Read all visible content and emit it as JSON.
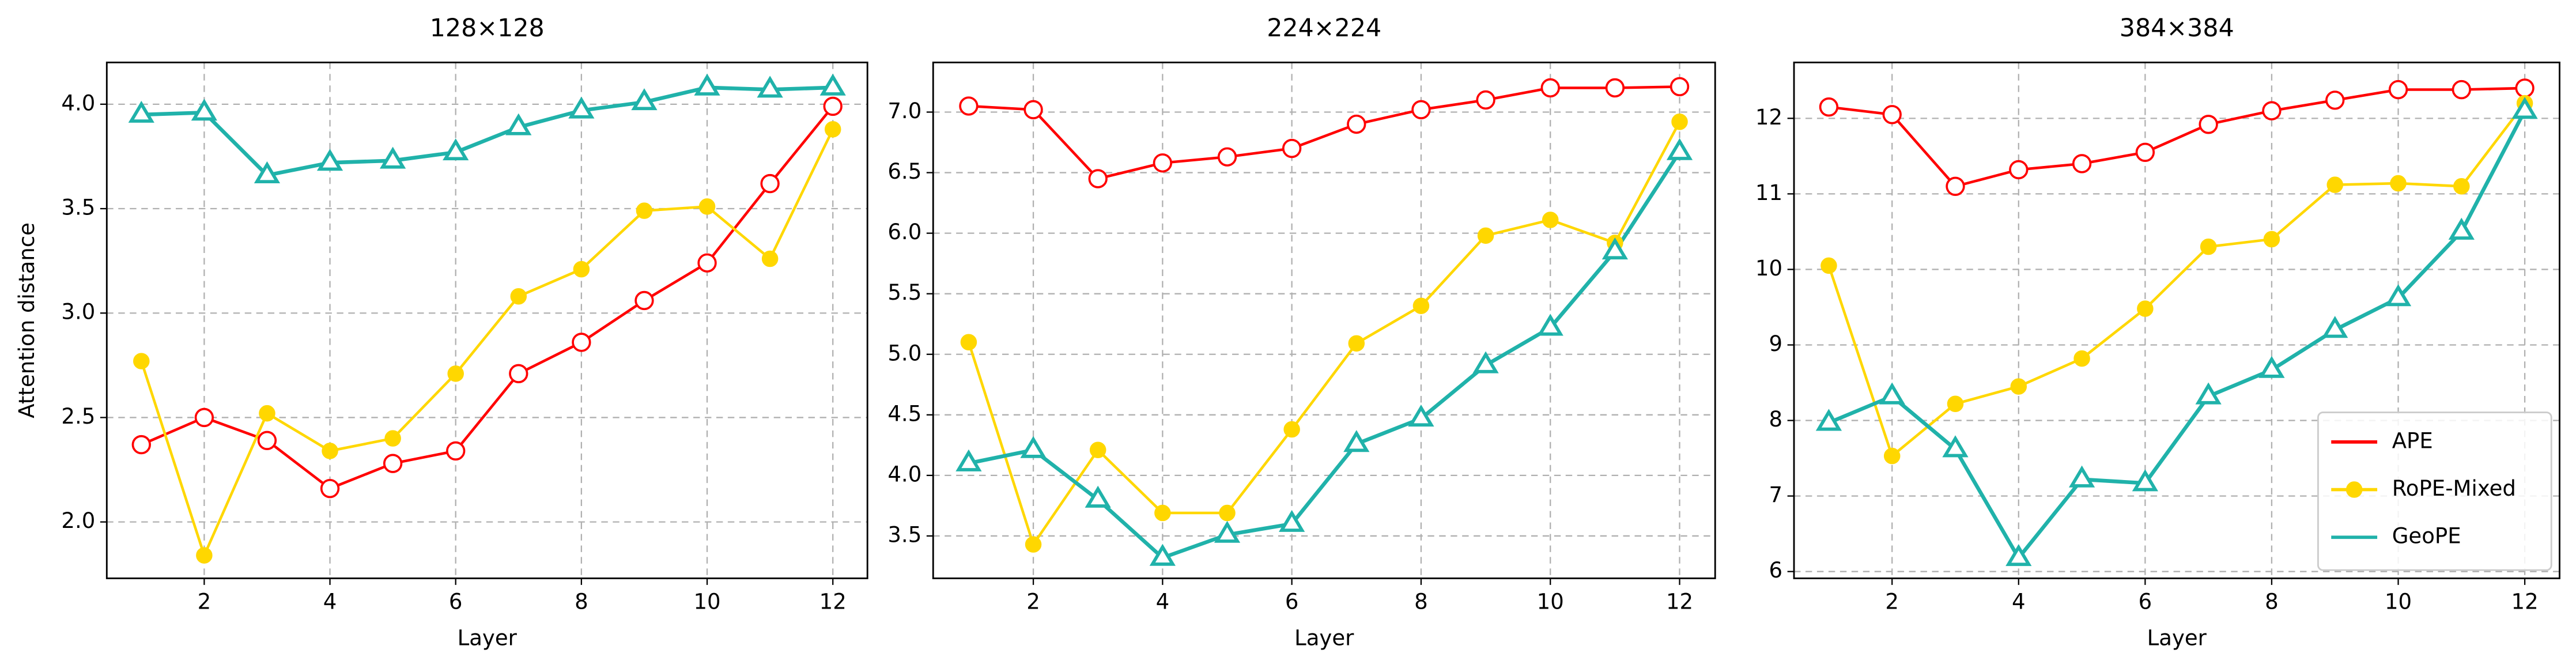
{
  "chart_data": [
    {
      "type": "line",
      "title": "128×128",
      "xlabel": "Layer",
      "ylabel": "Attention distance",
      "x": [
        1,
        2,
        3,
        4,
        5,
        6,
        7,
        8,
        9,
        10,
        11,
        12
      ],
      "xlim": [
        0.45,
        12.55
      ],
      "ylim": [
        1.73,
        4.2
      ],
      "grid": true,
      "xticks": [
        2,
        4,
        6,
        8,
        10,
        12
      ],
      "yticks": [
        {
          "value": 2,
          "label": "2.0"
        },
        2.5,
        {
          "value": 3,
          "label": "3.0"
        },
        3.5,
        {
          "value": 4,
          "label": "4.0"
        }
      ],
      "series": [
        {
          "name": "APE",
          "color": "#ff0000",
          "marker": "open-circle",
          "values": [
            2.37,
            2.5,
            2.39,
            2.16,
            2.28,
            2.34,
            2.71,
            2.86,
            3.06,
            3.24,
            3.62,
            3.99
          ]
        },
        {
          "name": "RoPE-Mixed",
          "color": "#ffd700",
          "marker": "filled-circle",
          "values": [
            2.77,
            1.84,
            2.52,
            2.34,
            2.4,
            2.71,
            3.08,
            3.21,
            3.49,
            3.51,
            3.26,
            3.88
          ]
        },
        {
          "name": "GeoPE",
          "color": "#20b2aa",
          "marker": "open-triangle",
          "values": [
            3.95,
            3.96,
            3.66,
            3.72,
            3.73,
            3.77,
            3.89,
            3.97,
            4.01,
            4.08,
            4.07,
            4.08
          ]
        }
      ]
    },
    {
      "type": "line",
      "title": "224×224",
      "xlabel": "Layer",
      "x": [
        1,
        2,
        3,
        4,
        5,
        6,
        7,
        8,
        9,
        10,
        11,
        12
      ],
      "xlim": [
        0.45,
        12.55
      ],
      "ylim": [
        3.15,
        7.41
      ],
      "grid": true,
      "xticks": [
        2,
        4,
        6,
        8,
        10,
        12
      ],
      "yticks": [
        3.5,
        {
          "value": 4,
          "label": "4.0"
        },
        4.5,
        {
          "value": 5,
          "label": "5.0"
        },
        5.5,
        {
          "value": 6,
          "label": "6.0"
        },
        6.5,
        {
          "value": 7,
          "label": "7.0"
        }
      ],
      "series": [
        {
          "name": "APE",
          "color": "#ff0000",
          "marker": "open-circle",
          "values": [
            7.05,
            7.02,
            6.45,
            6.58,
            6.63,
            6.7,
            6.9,
            7.02,
            7.1,
            7.2,
            7.2,
            7.21
          ]
        },
        {
          "name": "RoPE-Mixed",
          "color": "#ffd700",
          "marker": "filled-circle",
          "values": [
            5.1,
            3.43,
            4.21,
            3.69,
            3.69,
            4.38,
            5.09,
            5.4,
            5.98,
            6.11,
            5.92,
            6.92
          ]
        },
        {
          "name": "GeoPE",
          "color": "#20b2aa",
          "marker": "open-triangle",
          "values": [
            4.1,
            4.21,
            3.8,
            3.32,
            3.51,
            3.6,
            4.26,
            4.47,
            4.91,
            5.22,
            5.85,
            6.67
          ]
        }
      ]
    },
    {
      "type": "line",
      "title": "384×384",
      "xlabel": "Layer",
      "x": [
        1,
        2,
        3,
        4,
        5,
        6,
        7,
        8,
        9,
        10,
        11,
        12
      ],
      "xlim": [
        0.45,
        12.55
      ],
      "ylim": [
        5.91,
        12.74
      ],
      "grid": true,
      "legend": "lower right",
      "xticks": [
        2,
        4,
        6,
        8,
        10,
        12
      ],
      "yticks": [
        6,
        7,
        8,
        9,
        10,
        11,
        12
      ],
      "series": [
        {
          "name": "APE",
          "color": "#ff0000",
          "marker": "open-circle",
          "values": [
            12.15,
            12.05,
            11.1,
            11.32,
            11.4,
            11.55,
            11.92,
            12.1,
            12.24,
            12.38,
            12.38,
            12.4
          ]
        },
        {
          "name": "RoPE-Mixed",
          "color": "#ffd700",
          "marker": "filled-circle",
          "values": [
            10.05,
            7.53,
            8.22,
            8.45,
            8.82,
            9.48,
            10.3,
            10.4,
            11.12,
            11.14,
            11.1,
            12.2
          ]
        },
        {
          "name": "GeoPE",
          "color": "#20b2aa",
          "marker": "open-triangle",
          "values": [
            7.97,
            8.32,
            7.62,
            6.18,
            7.22,
            7.17,
            8.32,
            8.67,
            9.2,
            9.62,
            10.5,
            12.1
          ]
        }
      ]
    }
  ]
}
